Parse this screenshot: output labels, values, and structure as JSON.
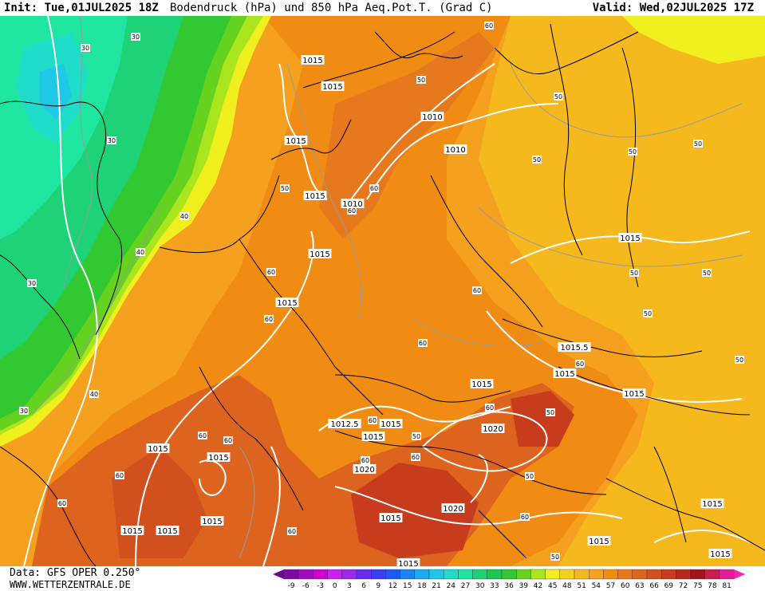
{
  "header": {
    "init": "Init: Tue,01JUL2025 18Z",
    "title": "Bodendruck (hPa) und 850 hPa Aeq.Pot.T. (Grad C)",
    "valid": "Valid: Wed,02JUL2025 17Z"
  },
  "footer": {
    "data_source": "Data: GFS OPER 0.250°",
    "website": "WWW.WETTERZENTRALE.DE"
  },
  "legend": {
    "values": [
      "-9",
      "-6",
      "-3",
      "0",
      "3",
      "6",
      "9",
      "12",
      "15",
      "18",
      "21",
      "24",
      "27",
      "30",
      "33",
      "36",
      "39",
      "42",
      "45",
      "48",
      "51",
      "54",
      "57",
      "60",
      "63",
      "66",
      "69",
      "72",
      "75",
      "78",
      "81"
    ],
    "colors": [
      "#7a0aa0",
      "#a00ac0",
      "#d000d0",
      "#c820f0",
      "#9a28f0",
      "#6a2cf0",
      "#3c3cf0",
      "#1e5af0",
      "#1e82f0",
      "#1eaaf0",
      "#1ec8e6",
      "#1edcc8",
      "#1ee6a0",
      "#1ed278",
      "#1ec850",
      "#32c832",
      "#64d21e",
      "#aae61e",
      "#f0f01e",
      "#f5d21e",
      "#f5b91e",
      "#f5a01e",
      "#f08c14",
      "#e6781e",
      "#dc641e",
      "#d2501e",
      "#c83c1e",
      "#b4281e",
      "#a0141e",
      "#c81e50",
      "#e61e96"
    ],
    "arrow_left_color": "#6a0a8a",
    "arrow_right_color": "#ff1eb4"
  },
  "map": {
    "isobars": [
      {
        "label": "1015"
      },
      {
        "label": "1015"
      },
      {
        "label": "1010"
      },
      {
        "label": "1010"
      },
      {
        "label": "1015"
      },
      {
        "label": "1015"
      },
      {
        "label": "1010"
      },
      {
        "label": "1015"
      },
      {
        "label": "1015"
      },
      {
        "label": "1015"
      },
      {
        "label": "1015.5"
      },
      {
        "label": "1015"
      },
      {
        "label": "1015"
      },
      {
        "label": "1015"
      },
      {
        "label": "1015"
      },
      {
        "label": "1012.5"
      },
      {
        "label": "1015"
      },
      {
        "label": "1015"
      },
      {
        "label": "1020"
      },
      {
        "label": "1020"
      },
      {
        "label": "1015"
      },
      {
        "label": "1015"
      },
      {
        "label": "1015"
      },
      {
        "label": "1015"
      },
      {
        "label": "1020"
      },
      {
        "label": "1015"
      },
      {
        "label": "1015"
      },
      {
        "label": "1015"
      },
      {
        "label": "1015"
      },
      {
        "label": "1015"
      }
    ],
    "theta_labels": [
      {
        "label": "30"
      },
      {
        "label": "30"
      },
      {
        "label": "30"
      },
      {
        "label": "30"
      },
      {
        "label": "40"
      },
      {
        "label": "40"
      },
      {
        "label": "30"
      },
      {
        "label": "40"
      },
      {
        "label": "50"
      },
      {
        "label": "60"
      },
      {
        "label": "60"
      },
      {
        "label": "50"
      },
      {
        "label": "60"
      },
      {
        "label": "60"
      },
      {
        "label": "60"
      },
      {
        "label": "50"
      },
      {
        "label": "50"
      },
      {
        "label": "50"
      },
      {
        "label": "50"
      },
      {
        "label": "50"
      },
      {
        "label": "50"
      },
      {
        "label": "50"
      },
      {
        "label": "50"
      },
      {
        "label": "60"
      },
      {
        "label": "60"
      },
      {
        "label": "60"
      },
      {
        "label": "60"
      },
      {
        "label": "50"
      },
      {
        "label": "60"
      },
      {
        "label": "60"
      },
      {
        "label": "60"
      },
      {
        "label": "60"
      },
      {
        "label": "60"
      },
      {
        "label": "60"
      },
      {
        "label": "60"
      },
      {
        "label": "50"
      },
      {
        "label": "50"
      },
      {
        "label": "60"
      },
      {
        "label": "60"
      },
      {
        "label": "50"
      }
    ]
  }
}
